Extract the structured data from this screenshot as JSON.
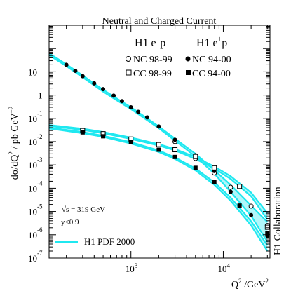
{
  "chart_data": {
    "type": "scatter",
    "title": "Neutral and Charged Current",
    "ylabel_base": "dσ/dQ",
    "ylabel_sq": "2",
    "ylabel_unit": " / pb GeV",
    "ylabel_unit_exp": "−2",
    "xlabel_base": "Q",
    "xlabel_sq": "2",
    "xlabel_unit": "  /GeV",
    "xlabel_unit_exp": "2",
    "x_scale": "log",
    "y_scale": "log",
    "xlim": [
      130,
      32000
    ],
    "ylim": [
      1e-07,
      1000
    ],
    "x_ticks": [
      {
        "base": "10",
        "exp": "3",
        "value": 1000
      },
      {
        "base": "10",
        "exp": "4",
        "value": 10000
      }
    ],
    "y_ticks": [
      {
        "base": "10",
        "exp": "",
        "value": 10
      },
      {
        "base": "1",
        "exp": "",
        "value": 1
      },
      {
        "base": "10",
        "exp": "-1",
        "value": 0.1
      },
      {
        "base": "10",
        "exp": "-2",
        "value": 0.01
      },
      {
        "base": "10",
        "exp": "-3",
        "value": 0.001
      },
      {
        "base": "10",
        "exp": "-4",
        "value": 0.0001
      },
      {
        "base": "10",
        "exp": "-5",
        "value": 1e-05
      },
      {
        "base": "10",
        "exp": "-6",
        "value": 1e-06
      },
      {
        "base": "10",
        "exp": "-7",
        "value": 1e-07
      }
    ],
    "legend_header_left": {
      "base": "H1 e",
      "sup": "−",
      "rest": "p"
    },
    "legend_header_right": {
      "base": "H1 e",
      "sup": "+",
      "rest": "p"
    },
    "series": [
      {
        "name": "NC 98-99",
        "marker": "open-circle",
        "x": [
          3000,
          5000,
          8000,
          12000,
          20000,
          30000
        ],
        "y": [
          0.01,
          0.0019,
          0.00045,
          0.00011,
          1.7e-05,
          2.5e-06
        ]
      },
      {
        "name": "NC 94-00",
        "marker": "filled-circle",
        "x": [
          200,
          250,
          300,
          400,
          500,
          650,
          800,
          1000,
          1200,
          1500,
          2000,
          3000,
          5000,
          8000,
          12000,
          20000,
          30000
        ],
        "y": [
          20,
          11,
          6.5,
          3.2,
          1.8,
          0.95,
          0.55,
          0.3,
          0.19,
          0.11,
          0.045,
          0.012,
          0.0026,
          0.00055,
          7e-05,
          7e-06,
          9e-07
        ]
      },
      {
        "name": "CC 98-99",
        "marker": "open-square",
        "x": [
          300,
          500,
          1000,
          2000,
          3000,
          5000,
          8000,
          15000,
          30000
        ],
        "y": [
          0.03,
          0.022,
          0.013,
          0.0075,
          0.0045,
          0.0023,
          0.00075,
          0.00012,
          2.1e-06
        ]
      },
      {
        "name": "CC 94-00",
        "marker": "filled-square",
        "x": [
          300,
          500,
          1000,
          2000,
          3000,
          5000,
          8000,
          15000,
          30000
        ],
        "y": [
          0.025,
          0.017,
          0.0095,
          0.0045,
          0.0022,
          0.00075,
          0.00018,
          1.8e-05,
          1.2e-06
        ]
      }
    ],
    "pdf_bands": {
      "name": "H1 PDF 2000",
      "color": "#1fe8f0",
      "nc": {
        "x": [
          130,
          200,
          300,
          500,
          700,
          1000,
          1500,
          2000,
          3000,
          5000,
          8000,
          12000,
          20000,
          30000
        ],
        "upper": [
          62,
          21,
          7,
          1.7,
          0.72,
          0.3,
          0.1,
          0.045,
          0.0135,
          0.003,
          0.0006,
          0.00014,
          1.8e-05,
          3.5e-06
        ],
        "lower": [
          52,
          17.5,
          5.8,
          1.4,
          0.6,
          0.25,
          0.083,
          0.038,
          0.011,
          0.0023,
          0.00042,
          7e-05,
          6.5e-06,
          5e-07
        ]
      },
      "cc_em": {
        "x": [
          130,
          300,
          500,
          1000,
          2000,
          3000,
          5000,
          8000,
          12000,
          20000,
          30000
        ],
        "upper": [
          0.052,
          0.036,
          0.026,
          0.015,
          0.0078,
          0.0048,
          0.0022,
          0.00085,
          0.00033,
          6.5e-05,
          8.5e-06
        ],
        "lower": [
          0.047,
          0.032,
          0.023,
          0.013,
          0.0068,
          0.0042,
          0.0018,
          0.0007,
          0.00025,
          4.5e-05,
          4.5e-06
        ]
      },
      "cc_ep": {
        "x": [
          130,
          300,
          500,
          1000,
          2000,
          3000,
          5000,
          8000,
          12000,
          20000,
          30000
        ],
        "upper": [
          0.04,
          0.026,
          0.018,
          0.0095,
          0.0042,
          0.0021,
          0.0007,
          0.00018,
          4e-05,
          3.8e-06,
          3.5e-07
        ],
        "lower": [
          0.037,
          0.023,
          0.016,
          0.0083,
          0.0036,
          0.0018,
          0.00058,
          0.00014,
          2.9e-05,
          2.5e-06,
          2e-07
        ]
      }
    },
    "annotations": {
      "sqrt_s": "√s = 319 GeV",
      "ycut": "y<0.9",
      "side_label": "H1 Collaboration"
    },
    "grid": false,
    "legend_position": "top-right"
  }
}
